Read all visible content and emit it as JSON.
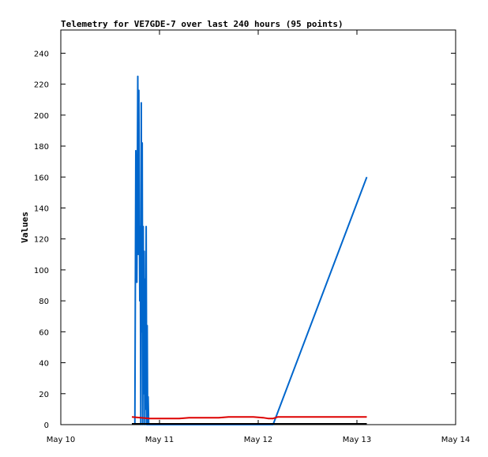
{
  "chart_data": {
    "type": "line",
    "title": "Telemetry for VE7GDE-7 over last 240 hours (95 points)",
    "xlabel": "",
    "ylabel": "Values",
    "xlim": [
      "May 10",
      "May 14"
    ],
    "ylim": [
      0,
      255
    ],
    "grid": false,
    "x_ticks": [
      "May 10",
      "May 11",
      "May 12",
      "May 13",
      "May 14"
    ],
    "y_ticks": [
      0,
      20,
      40,
      60,
      80,
      100,
      120,
      140,
      160,
      180,
      200,
      220,
      240
    ],
    "series": [
      {
        "color": "#0066cc",
        "points": [
          [
            0.75,
            0
          ],
          [
            0.76,
            177
          ],
          [
            0.77,
            92
          ],
          [
            0.78,
            225
          ],
          [
            0.785,
            110
          ],
          [
            0.79,
            216
          ],
          [
            0.8,
            80
          ],
          [
            0.805,
            128
          ],
          [
            0.81,
            0
          ],
          [
            0.815,
            208
          ],
          [
            0.82,
            60
          ],
          [
            0.825,
            182
          ],
          [
            0.83,
            0
          ],
          [
            0.835,
            128
          ],
          [
            0.84,
            20
          ],
          [
            0.845,
            112
          ],
          [
            0.85,
            0
          ],
          [
            0.855,
            94
          ],
          [
            0.86,
            10
          ],
          [
            0.865,
            128
          ],
          [
            0.87,
            0
          ],
          [
            0.875,
            64
          ],
          [
            0.88,
            0
          ],
          [
            0.885,
            18
          ],
          [
            0.89,
            0
          ],
          [
            2.15,
            0
          ],
          [
            3.1,
            160
          ]
        ]
      },
      {
        "color": "#dd0000",
        "points": [
          [
            0.72,
            5
          ],
          [
            0.9,
            4
          ],
          [
            1.2,
            4
          ],
          [
            1.3,
            4.5
          ],
          [
            1.6,
            4.5
          ],
          [
            1.7,
            5
          ],
          [
            1.95,
            5
          ],
          [
            2.05,
            4.5
          ],
          [
            2.1,
            4
          ],
          [
            2.15,
            4
          ],
          [
            2.2,
            5
          ],
          [
            3.1,
            5
          ]
        ]
      },
      {
        "color": "#000000",
        "points": [
          [
            0.72,
            0.5
          ],
          [
            3.1,
            0.5
          ]
        ]
      }
    ]
  }
}
